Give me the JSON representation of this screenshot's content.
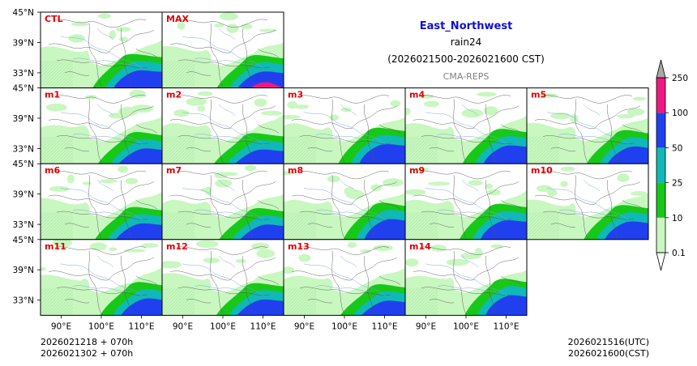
{
  "header": {
    "region": "East_Northwest",
    "variable": "rain24",
    "period": "(2026021500-2026021600 CST)",
    "model": "CMA-REPS"
  },
  "panels": [
    {
      "label": "CTL"
    },
    {
      "label": "MAX"
    },
    {
      "label": "m1"
    },
    {
      "label": "m2"
    },
    {
      "label": "m3"
    },
    {
      "label": "m4"
    },
    {
      "label": "m5"
    },
    {
      "label": "m6"
    },
    {
      "label": "m7"
    },
    {
      "label": "m8"
    },
    {
      "label": "m9"
    },
    {
      "label": "m10"
    },
    {
      "label": "m11"
    },
    {
      "label": "m12"
    },
    {
      "label": "m13"
    },
    {
      "label": "m14"
    }
  ],
  "axes": {
    "lat_ticks": [
      "45°N",
      "39°N",
      "33°N"
    ],
    "lon_ticks": [
      "90°E",
      "100°E",
      "110°E"
    ]
  },
  "colorbar": {
    "levels": [
      "0.1",
      "10",
      "25",
      "50",
      "100",
      "250"
    ],
    "colors": {
      "under": "#ffffff",
      "c1": "#c8f7c0",
      "c2": "#18c818",
      "c3": "#10b8b8",
      "c4": "#2040f0",
      "c5": "#f01880",
      "over": "#a8a8a8"
    }
  },
  "footer": {
    "init_utc_line": "2026021218  +  070h",
    "init_cst_line": "2026021302  +  070h",
    "valid_utc": "2026021516(UTC)",
    "valid_cst": "2026021600(CST)"
  },
  "colors": {
    "title_blue": "#1010d0",
    "label_red": "#e00000",
    "model_gray": "#808080"
  }
}
